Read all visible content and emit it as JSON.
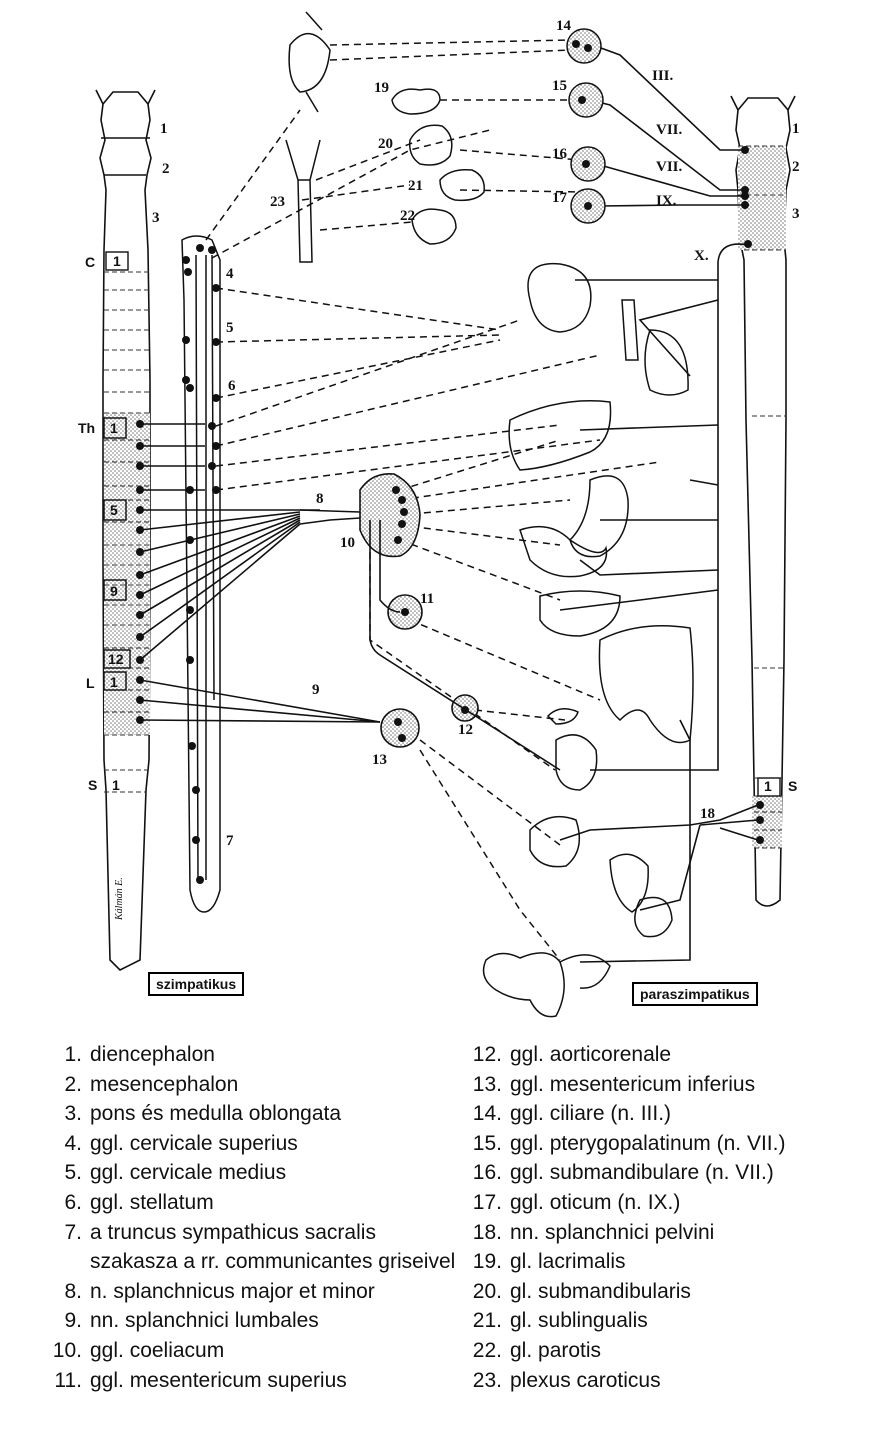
{
  "side_labels": {
    "sympathetic": "szimpatikus",
    "parasympathetic": "paraszimpatikus"
  },
  "segment_labels": {
    "C": "C",
    "Th": "Th",
    "L": "L",
    "S": "S",
    "C1": "1",
    "Th1": "1",
    "Th5": "5",
    "Th9": "9",
    "Th12": "12",
    "L1": "1",
    "S1": "1",
    "S1_right": "1"
  },
  "nerve_labels": {
    "III": "III.",
    "VII_a": "VII.",
    "VII_b": "VII.",
    "IX": "IX.",
    "X": "X."
  },
  "signature": "Kálmán E.",
  "figure_numbers": {
    "n1l": "1",
    "n2l": "2",
    "n3l": "3",
    "n1r": "1",
    "n2r": "2",
    "n3r": "3",
    "n4": "4",
    "n5": "5",
    "n6": "6",
    "n7": "7",
    "n8": "8",
    "n9": "9",
    "n10": "10",
    "n11": "11",
    "n12": "12",
    "n13": "13",
    "n14": "14",
    "n15": "15",
    "n16": "16",
    "n17": "17",
    "n18": "18",
    "n19": "19",
    "n20": "20",
    "n21": "21",
    "n22": "22",
    "n23": "23",
    "S_right": "S"
  },
  "legend": [
    {
      "num": "1.",
      "text": "diencephalon"
    },
    {
      "num": "2.",
      "text": "mesencephalon"
    },
    {
      "num": "3.",
      "text": "pons és medulla oblongata"
    },
    {
      "num": "4.",
      "text": "ggl. cervicale superius"
    },
    {
      "num": "5.",
      "text": "ggl. cervicale medius"
    },
    {
      "num": "6.",
      "text": "ggl. stellatum"
    },
    {
      "num": "7.",
      "text": "a truncus sympathicus sacralis szakasza a rr. communicantes griseivel"
    },
    {
      "num": "8.",
      "text": "n. splanchnicus major et minor"
    },
    {
      "num": "9.",
      "text": "nn. splanchnici lumbales"
    },
    {
      "num": "10.",
      "text": "ggl. coeliacum"
    },
    {
      "num": "11.",
      "text": "ggl. mesentericum superius"
    },
    {
      "num": "12.",
      "text": "ggl. aorticorenale"
    },
    {
      "num": "13.",
      "text": "ggl. mesentericum inferius"
    },
    {
      "num": "14.",
      "text": "ggl. ciliare (n. III.)"
    },
    {
      "num": "15.",
      "text": "ggl. pterygopalatinum (n. VII.)"
    },
    {
      "num": "16.",
      "text": "ggl. submandibulare (n. VII.)"
    },
    {
      "num": "17.",
      "text": "ggl. oticum (n. IX.)"
    },
    {
      "num": "18.",
      "text": "nn. splanchnici pelvini"
    },
    {
      "num": "19.",
      "text": "gl. lacrimalis"
    },
    {
      "num": "20.",
      "text": "gl. submandibularis"
    },
    {
      "num": "21.",
      "text": "gl. sublingualis"
    },
    {
      "num": "22.",
      "text": "gl. parotis"
    },
    {
      "num": "23.",
      "text": "plexus caroticus"
    }
  ]
}
